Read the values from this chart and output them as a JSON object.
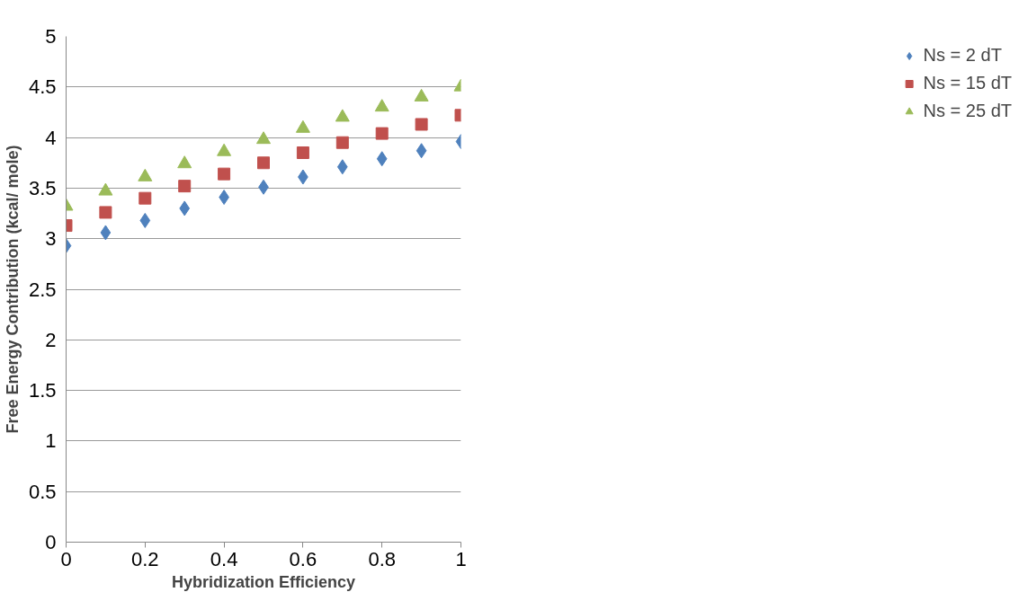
{
  "chart_data": {
    "type": "scatter",
    "xlabel": "Hybridization Efficiency",
    "ylabel": "Free Energy Contribution (kcal/ mole)",
    "x": [
      0,
      0.1,
      0.2,
      0.3,
      0.4,
      0.5,
      0.6,
      0.7,
      0.8,
      0.9,
      1
    ],
    "series": [
      {
        "name": "Ns = 2 dT",
        "color": "#4f81bd",
        "marker": "diamond",
        "values": [
          2.93,
          3.06,
          3.18,
          3.3,
          3.41,
          3.51,
          3.61,
          3.71,
          3.79,
          3.87,
          3.96
        ]
      },
      {
        "name": "Ns = 15 dT",
        "color": "#c0504d",
        "marker": "square",
        "values": [
          3.13,
          3.26,
          3.4,
          3.52,
          3.64,
          3.75,
          3.85,
          3.95,
          4.04,
          4.13,
          4.22
        ]
      },
      {
        "name": "Ns = 25 dT",
        "color": "#9bbb59",
        "marker": "triangle",
        "values": [
          3.32,
          3.47,
          3.61,
          3.74,
          3.86,
          3.98,
          4.09,
          4.2,
          4.3,
          4.4,
          4.5
        ]
      }
    ],
    "xlim": [
      0,
      1
    ],
    "ylim": [
      0,
      5
    ],
    "xticks": [
      0,
      0.2,
      0.4,
      0.6,
      0.8,
      1
    ],
    "yticks": [
      0,
      0.5,
      1,
      1.5,
      2,
      2.5,
      3,
      3.5,
      4,
      4.5,
      5
    ],
    "grid": "y",
    "legend": "right"
  }
}
